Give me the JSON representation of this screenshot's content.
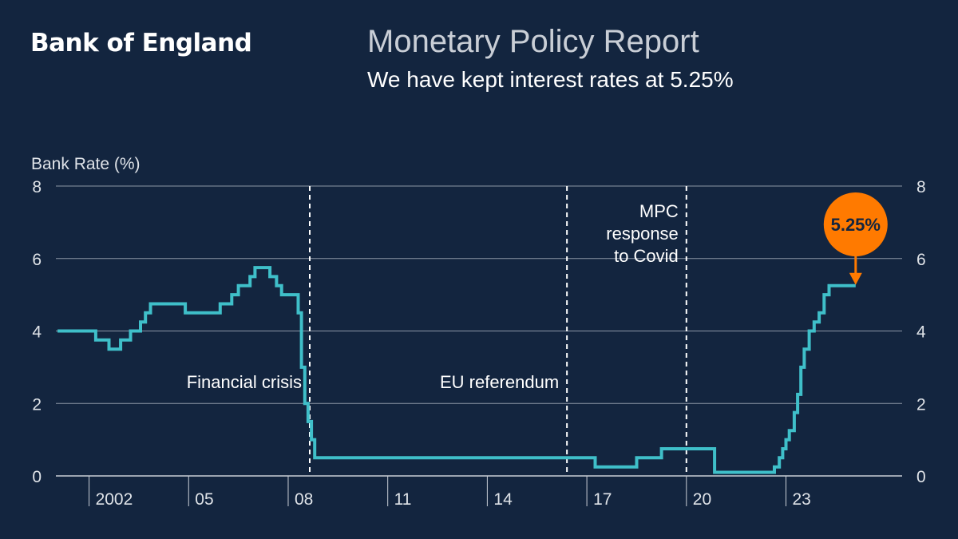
{
  "header": {
    "brand": "Bank of England",
    "title": "Monetary Policy Report",
    "subtitle": "We have kept interest rates at 5.25%"
  },
  "colors": {
    "background": "#13253f",
    "line": "#3fbfc9",
    "highlight": "#ff7a00",
    "highlight_text": "#13253f"
  },
  "chart_data": {
    "type": "line",
    "step": true,
    "ylabel": "Bank Rate (%)",
    "ylim": [
      0,
      8
    ],
    "yticks": [
      0,
      2,
      4,
      6,
      8
    ],
    "y_axis_both_sides": true,
    "grid": "horizontal",
    "xlim": [
      2000.0,
      2025.5
    ],
    "xticks": [
      {
        "x": 2001,
        "label": "2002"
      },
      {
        "x": 2004,
        "label": "05"
      },
      {
        "x": 2007,
        "label": "08"
      },
      {
        "x": 2010,
        "label": "11"
      },
      {
        "x": 2013,
        "label": "14"
      },
      {
        "x": 2016,
        "label": "17"
      },
      {
        "x": 2019,
        "label": "20"
      },
      {
        "x": 2022,
        "label": "23"
      }
    ],
    "series": [
      {
        "points": [
          [
            2000.05,
            4.0
          ],
          [
            2001.2,
            4.0
          ],
          [
            2001.2,
            3.75
          ],
          [
            2001.6,
            3.75
          ],
          [
            2001.6,
            3.5
          ],
          [
            2001.95,
            3.5
          ],
          [
            2001.95,
            3.75
          ],
          [
            2002.25,
            3.75
          ],
          [
            2002.25,
            4.0
          ],
          [
            2002.55,
            4.0
          ],
          [
            2002.55,
            4.25
          ],
          [
            2002.7,
            4.25
          ],
          [
            2002.7,
            4.5
          ],
          [
            2002.85,
            4.5
          ],
          [
            2002.85,
            4.75
          ],
          [
            2003.9,
            4.75
          ],
          [
            2003.9,
            4.5
          ],
          [
            2004.95,
            4.5
          ],
          [
            2004.95,
            4.75
          ],
          [
            2005.3,
            4.75
          ],
          [
            2005.3,
            5.0
          ],
          [
            2005.5,
            5.0
          ],
          [
            2005.5,
            5.25
          ],
          [
            2005.85,
            5.25
          ],
          [
            2005.85,
            5.5
          ],
          [
            2006.0,
            5.5
          ],
          [
            2006.0,
            5.75
          ],
          [
            2006.45,
            5.75
          ],
          [
            2006.45,
            5.5
          ],
          [
            2006.65,
            5.5
          ],
          [
            2006.65,
            5.25
          ],
          [
            2006.8,
            5.25
          ],
          [
            2006.8,
            5.0
          ],
          [
            2007.3,
            5.0
          ],
          [
            2007.3,
            4.5
          ],
          [
            2007.4,
            4.5
          ],
          [
            2007.4,
            3.0
          ],
          [
            2007.5,
            3.0
          ],
          [
            2007.5,
            2.0
          ],
          [
            2007.6,
            2.0
          ],
          [
            2007.6,
            1.5
          ],
          [
            2007.7,
            1.5
          ],
          [
            2007.7,
            1.0
          ],
          [
            2007.8,
            1.0
          ],
          [
            2007.8,
            0.5
          ],
          [
            2016.25,
            0.5
          ],
          [
            2016.25,
            0.25
          ],
          [
            2017.5,
            0.25
          ],
          [
            2017.5,
            0.5
          ],
          [
            2018.25,
            0.5
          ],
          [
            2018.25,
            0.75
          ],
          [
            2019.85,
            0.75
          ],
          [
            2019.85,
            0.1
          ],
          [
            2021.65,
            0.1
          ],
          [
            2021.65,
            0.25
          ],
          [
            2021.8,
            0.25
          ],
          [
            2021.8,
            0.5
          ],
          [
            2021.9,
            0.5
          ],
          [
            2021.9,
            0.75
          ],
          [
            2022.0,
            0.75
          ],
          [
            2022.0,
            1.0
          ],
          [
            2022.1,
            1.0
          ],
          [
            2022.1,
            1.25
          ],
          [
            2022.25,
            1.25
          ],
          [
            2022.25,
            1.75
          ],
          [
            2022.35,
            1.75
          ],
          [
            2022.35,
            2.25
          ],
          [
            2022.45,
            2.25
          ],
          [
            2022.45,
            3.0
          ],
          [
            2022.55,
            3.0
          ],
          [
            2022.55,
            3.5
          ],
          [
            2022.7,
            3.5
          ],
          [
            2022.7,
            4.0
          ],
          [
            2022.85,
            4.0
          ],
          [
            2022.85,
            4.25
          ],
          [
            2023.0,
            4.25
          ],
          [
            2023.0,
            4.5
          ],
          [
            2023.15,
            4.5
          ],
          [
            2023.15,
            5.0
          ],
          [
            2023.3,
            5.0
          ],
          [
            2023.3,
            5.25
          ],
          [
            2024.1,
            5.25
          ]
        ]
      }
    ],
    "events": [
      {
        "x": 2007.65,
        "label": [
          "Financial crisis"
        ],
        "label_y": 2.6
      },
      {
        "x": 2015.4,
        "label": [
          "EU referendum"
        ],
        "label_y": 2.6
      },
      {
        "x": 2019.0,
        "label": [
          "MPC",
          "response",
          "to Covid"
        ],
        "label_y": 6.7
      }
    ],
    "callout": {
      "label": "5.25%",
      "x": 2024.1,
      "y": 5.25
    }
  }
}
